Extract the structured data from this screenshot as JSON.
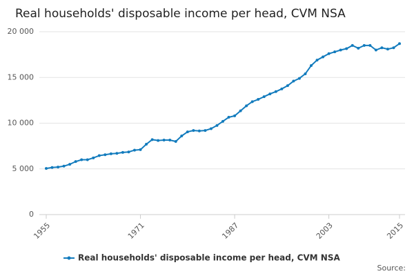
{
  "chart_data": {
    "type": "line",
    "title": "Real households' disposable income per head, CVM NSA",
    "source": "Source:",
    "x": [
      1955,
      1956,
      1957,
      1958,
      1959,
      1960,
      1961,
      1962,
      1963,
      1964,
      1965,
      1966,
      1967,
      1968,
      1969,
      1970,
      1971,
      1972,
      1973,
      1974,
      1975,
      1976,
      1977,
      1978,
      1979,
      1980,
      1981,
      1982,
      1983,
      1984,
      1985,
      1986,
      1987,
      1988,
      1989,
      1990,
      1991,
      1992,
      1993,
      1994,
      1995,
      1996,
      1997,
      1998,
      1999,
      2000,
      2001,
      2002,
      2003,
      2004,
      2005,
      2006,
      2007,
      2008,
      2009,
      2010,
      2011,
      2012,
      2013,
      2014,
      2015
    ],
    "series": [
      {
        "name": "Real households' disposable income per head, CVM NSA",
        "color": "#127bbd",
        "values": [
          5050,
          5150,
          5200,
          5300,
          5500,
          5800,
          6000,
          6000,
          6200,
          6450,
          6550,
          6650,
          6700,
          6800,
          6850,
          7050,
          7100,
          7700,
          8200,
          8100,
          8150,
          8150,
          8000,
          8600,
          9050,
          9200,
          9150,
          9200,
          9400,
          9750,
          10200,
          10650,
          10800,
          11350,
          11900,
          12350,
          12600,
          12900,
          13200,
          13450,
          13750,
          14100,
          14600,
          14900,
          15400,
          16300,
          16900,
          17250,
          17600,
          17800,
          18000,
          18150,
          18500,
          18200,
          18500,
          18500,
          18000,
          18250,
          18100,
          18250,
          18700
        ]
      }
    ],
    "xlim": [
      1955,
      2015
    ],
    "xticks": [
      1955,
      1971,
      1987,
      2003,
      2015
    ],
    "ylim": [
      0,
      20000
    ],
    "yticks": [
      0,
      {
        "value": 5000,
        "label": "5 000"
      },
      {
        "value": 10000,
        "label": "10 000"
      },
      {
        "value": 15000,
        "label": "15 000"
      },
      {
        "value": 20000,
        "label": "20 000"
      }
    ],
    "grid": true,
    "legend": "bottom"
  }
}
